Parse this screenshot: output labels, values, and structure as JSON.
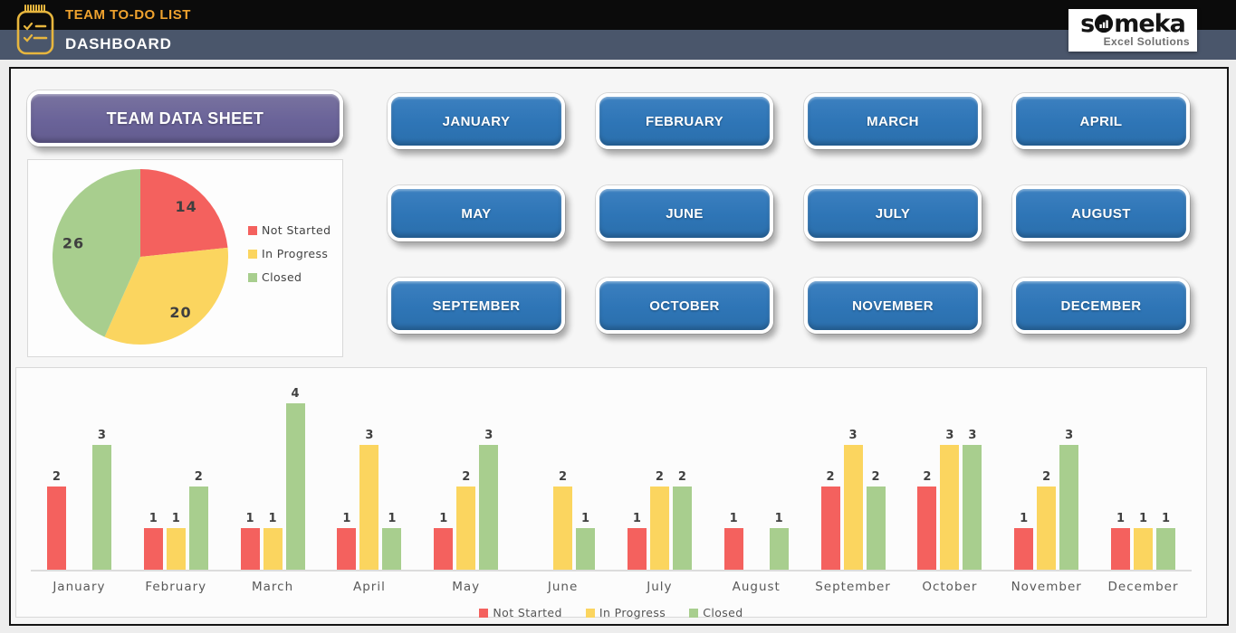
{
  "header": {
    "app_title": "TEAM TO-DO LIST",
    "page_title": "DASHBOARD",
    "icon": "todo-clipboard-icon",
    "logo": {
      "brand": "someka",
      "brand_prefix": "s",
      "brand_suffix": "meka",
      "o_icon": "bar-chart-in-circle-icon",
      "tagline": "Excel Solutions"
    }
  },
  "nav": {
    "team_data_sheet_label": "TEAM DATA SHEET",
    "months": [
      "JANUARY",
      "FEBRUARY",
      "MARCH",
      "APRIL",
      "MAY",
      "JUNE",
      "JULY",
      "AUGUST",
      "SEPTEMBER",
      "OCTOBER",
      "NOVEMBER",
      "DECEMBER"
    ]
  },
  "colors": {
    "header_black": "#0b0b0b",
    "header_slate": "#4a566b",
    "title_gold": "#efa22e",
    "month_button_blue": "#2e75b6",
    "data_sheet_purple": "#6a6399",
    "not_started_red": "#f4615e",
    "in_progress_yellow": "#fbd55f",
    "closed_green": "#a8ce8e"
  },
  "chart_data": [
    {
      "type": "pie",
      "title": "",
      "labels": [
        "Not Started",
        "In Progress",
        "Closed"
      ],
      "values": [
        14,
        20,
        26
      ],
      "colors": [
        "#f4615e",
        "#fbd55f",
        "#a8ce8e"
      ],
      "legend_position": "right",
      "start_angle_deg": 0,
      "direction": "clockwise",
      "data_labels": true
    },
    {
      "type": "bar",
      "title": "",
      "categories": [
        "January",
        "February",
        "March",
        "April",
        "May",
        "June",
        "July",
        "August",
        "September",
        "October",
        "November",
        "December"
      ],
      "series": [
        {
          "name": "Not Started",
          "color": "#f4615e",
          "values": [
            2,
            1,
            1,
            1,
            1,
            0,
            1,
            1,
            2,
            2,
            1,
            1
          ]
        },
        {
          "name": "In Progress",
          "color": "#fbd55f",
          "values": [
            0,
            1,
            1,
            3,
            2,
            2,
            2,
            0,
            3,
            3,
            2,
            1
          ]
        },
        {
          "name": "Closed",
          "color": "#a8ce8e",
          "values": [
            3,
            2,
            4,
            1,
            3,
            1,
            2,
            1,
            2,
            3,
            3,
            1
          ]
        }
      ],
      "ylim": [
        0,
        4
      ],
      "grid": false,
      "data_labels": true,
      "hide_zero_bars": true,
      "legend_position": "bottom"
    }
  ]
}
